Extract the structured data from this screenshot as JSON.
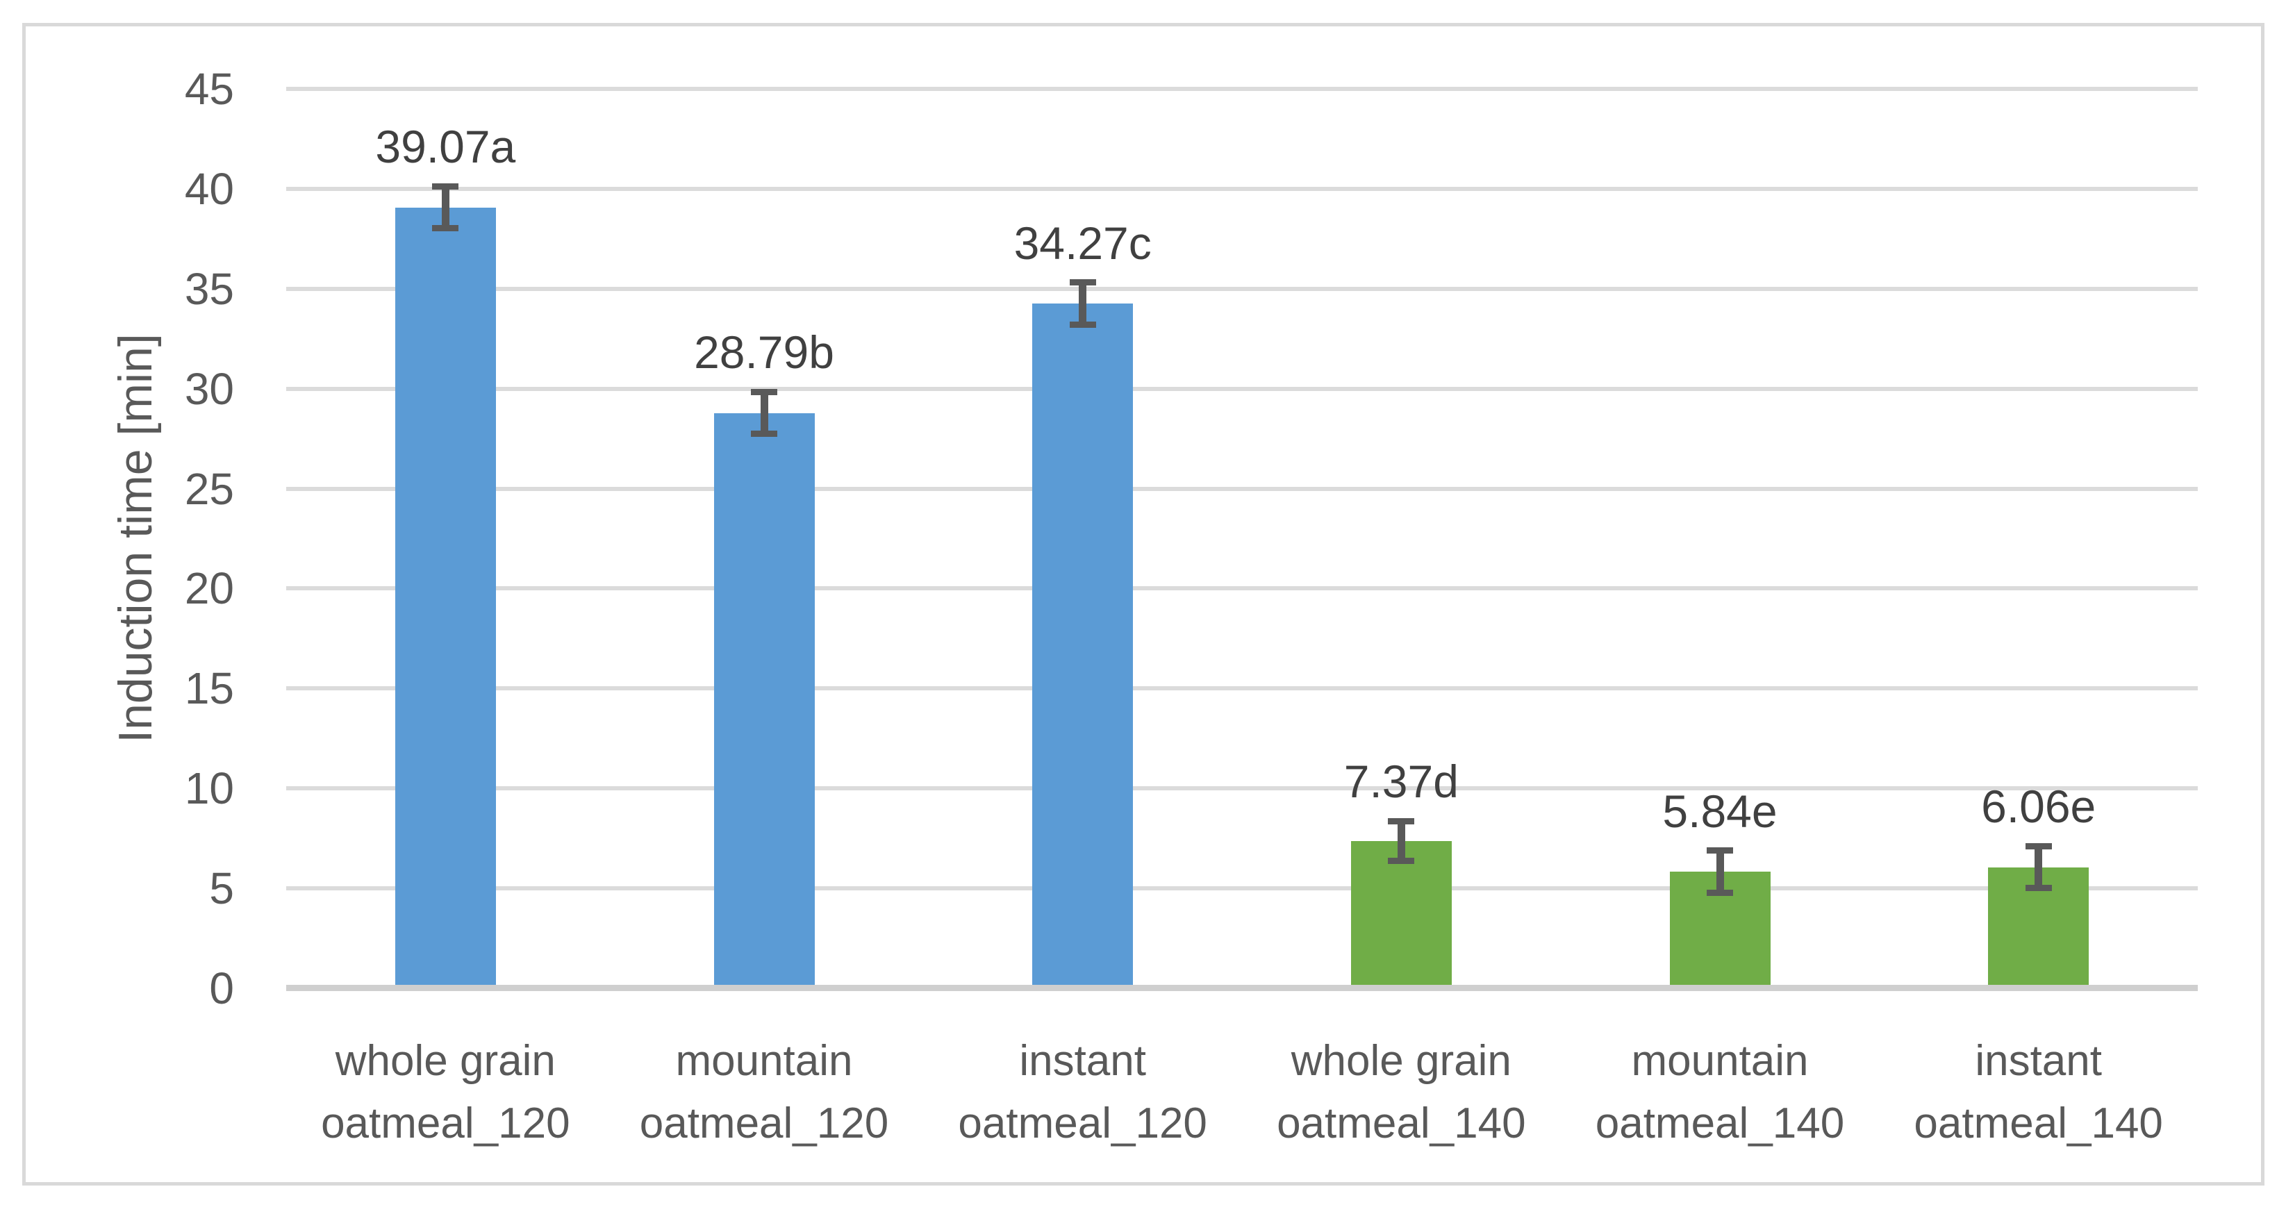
{
  "chart_data": {
    "type": "bar",
    "title": "",
    "ylabel": "Induction time [min]",
    "xlabel": "",
    "ylim": [
      0,
      45
    ],
    "ytick_interval": 5,
    "yticks": [
      0,
      5,
      10,
      15,
      20,
      25,
      30,
      35,
      40,
      45
    ],
    "grid": true,
    "legend_position": "none",
    "categories": [
      [
        "whole grain",
        "oatmeal_120"
      ],
      [
        "mountain",
        "oatmeal_120"
      ],
      [
        "instant",
        "oatmeal_120"
      ],
      [
        "whole grain",
        "oatmeal_140"
      ],
      [
        "mountain",
        "oatmeal_140"
      ],
      [
        "instant",
        "oatmeal_140"
      ]
    ],
    "values": [
      39.07,
      28.79,
      34.27,
      7.37,
      5.84,
      6.06
    ],
    "data_labels": [
      "39.07a",
      "28.79b",
      "34.27c",
      "7.37d",
      "5.84e",
      "6.06e"
    ],
    "error_bars": [
      1.05,
      1.05,
      1.05,
      1.0,
      1.05,
      1.05
    ],
    "bar_colors": [
      "#5B9BD5",
      "#5B9BD5",
      "#5B9BD5",
      "#70AD47",
      "#70AD47",
      "#70AD47"
    ],
    "colors": {
      "bar_blue": "#5B9BD5",
      "bar_green": "#70AD47",
      "gridline": "#DBDBDB",
      "axis_line": "#CFCFCF",
      "error_bar": "#595959",
      "tick_text": "#595959",
      "data_label_text": "#404040",
      "category_text": "#595959",
      "frame_border": "#D9D9D9",
      "background": "#FFFFFF"
    }
  }
}
